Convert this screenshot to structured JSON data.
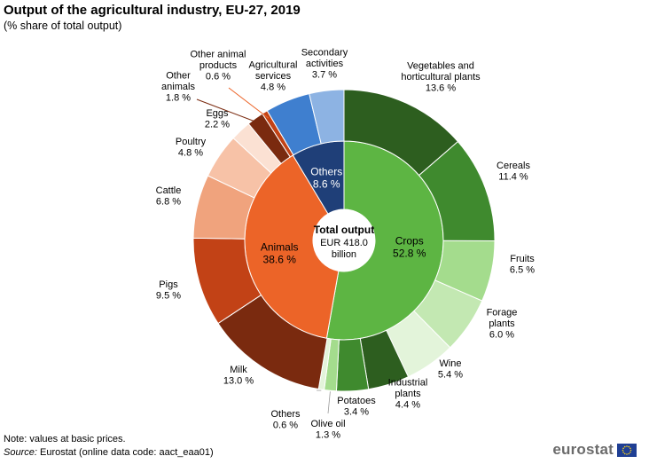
{
  "title": "Output of the agricultural industry, EU-27, 2019",
  "subtitle": "(% share of total output)",
  "note": "Note: values at basic prices.",
  "source_label": "Source:",
  "source_text": "Eurostat (online data code: aact_eaa01)",
  "logo_text": "eurostat",
  "chart_data": {
    "type": "pie",
    "center_label": {
      "line1": "Total output",
      "line2": "EUR 418.0",
      "line3": "billion"
    },
    "inner_ring": [
      {
        "name": "Crops",
        "value_label": "52.8 %",
        "value": 52.8,
        "color": "#5db543"
      },
      {
        "name": "Animals",
        "value_label": "38.6 %",
        "value": 38.6,
        "color": "#ec6428"
      },
      {
        "name": "Others",
        "value_label": "8.6 %",
        "value": 8.6,
        "color": "#1f3f78"
      }
    ],
    "outer_ring": [
      {
        "label": [
          "Vegetables and",
          "horticultural plants"
        ],
        "value_label": "13.6 %",
        "value": 13.6,
        "group": "Crops",
        "color": "#2d5e1f"
      },
      {
        "label": [
          "Cereals"
        ],
        "value_label": "11.4 %",
        "value": 11.4,
        "group": "Crops",
        "color": "#3f8a2e"
      },
      {
        "label": [
          "Fruits"
        ],
        "value_label": "6.5 %",
        "value": 6.5,
        "group": "Crops",
        "color": "#a4dc8d"
      },
      {
        "label": [
          "Forage",
          "plants"
        ],
        "value_label": "6.0 %",
        "value": 6.0,
        "group": "Crops",
        "color": "#c3e8b2"
      },
      {
        "label": [
          "Wine"
        ],
        "value_label": "5.4 %",
        "value": 5.4,
        "group": "Crops",
        "color": "#e3f4da"
      },
      {
        "label": [
          "Industrial",
          "plants"
        ],
        "value_label": "4.4 %",
        "value": 4.4,
        "group": "Crops",
        "color": "#2d5e1f"
      },
      {
        "label": [
          "Potatoes"
        ],
        "value_label": "3.4 %",
        "value": 3.4,
        "group": "Crops",
        "color": "#3f8a2e"
      },
      {
        "label": [
          "Olive oil"
        ],
        "value_label": "1.3 %",
        "value": 1.3,
        "group": "Crops",
        "color": "#a4dc8d"
      },
      {
        "label": [
          "Others"
        ],
        "value_label": "0.6 %",
        "value": 0.6,
        "group": "Crops",
        "color": "#e3f4da"
      },
      {
        "label": [
          "Milk"
        ],
        "value_label": "13.0 %",
        "value": 13.0,
        "group": "Animals",
        "color": "#7a2a0f"
      },
      {
        "label": [
          "Pigs"
        ],
        "value_label": "9.5 %",
        "value": 9.5,
        "group": "Animals",
        "color": "#c24216"
      },
      {
        "label": [
          "Cattle"
        ],
        "value_label": "6.8 %",
        "value": 6.8,
        "group": "Animals",
        "color": "#f0a37d"
      },
      {
        "label": [
          "Poultry"
        ],
        "value_label": "4.8 %",
        "value": 4.8,
        "group": "Animals",
        "color": "#f7c2a7"
      },
      {
        "label": [
          "Eggs"
        ],
        "value_label": "2.2 %",
        "value": 2.2,
        "group": "Animals",
        "color": "#fbe1d3"
      },
      {
        "label": [
          "Other",
          "animals"
        ],
        "value_label": "1.8 %",
        "value": 1.8,
        "group": "Animals",
        "color": "#7a2a0f"
      },
      {
        "label": [
          "Other animal",
          "products"
        ],
        "value_label": "0.6 %",
        "value": 0.6,
        "group": "Animals",
        "color": "#c24216"
      },
      {
        "label": [
          "Agricultural",
          "services"
        ],
        "value_label": "4.8 %",
        "value": 4.8,
        "group": "Others",
        "color": "#3f7fcf"
      },
      {
        "label": [
          "Secondary",
          "activities"
        ],
        "value_label": "3.7 %",
        "value": 3.7,
        "group": "Others",
        "color": "#8db3e3"
      }
    ]
  }
}
